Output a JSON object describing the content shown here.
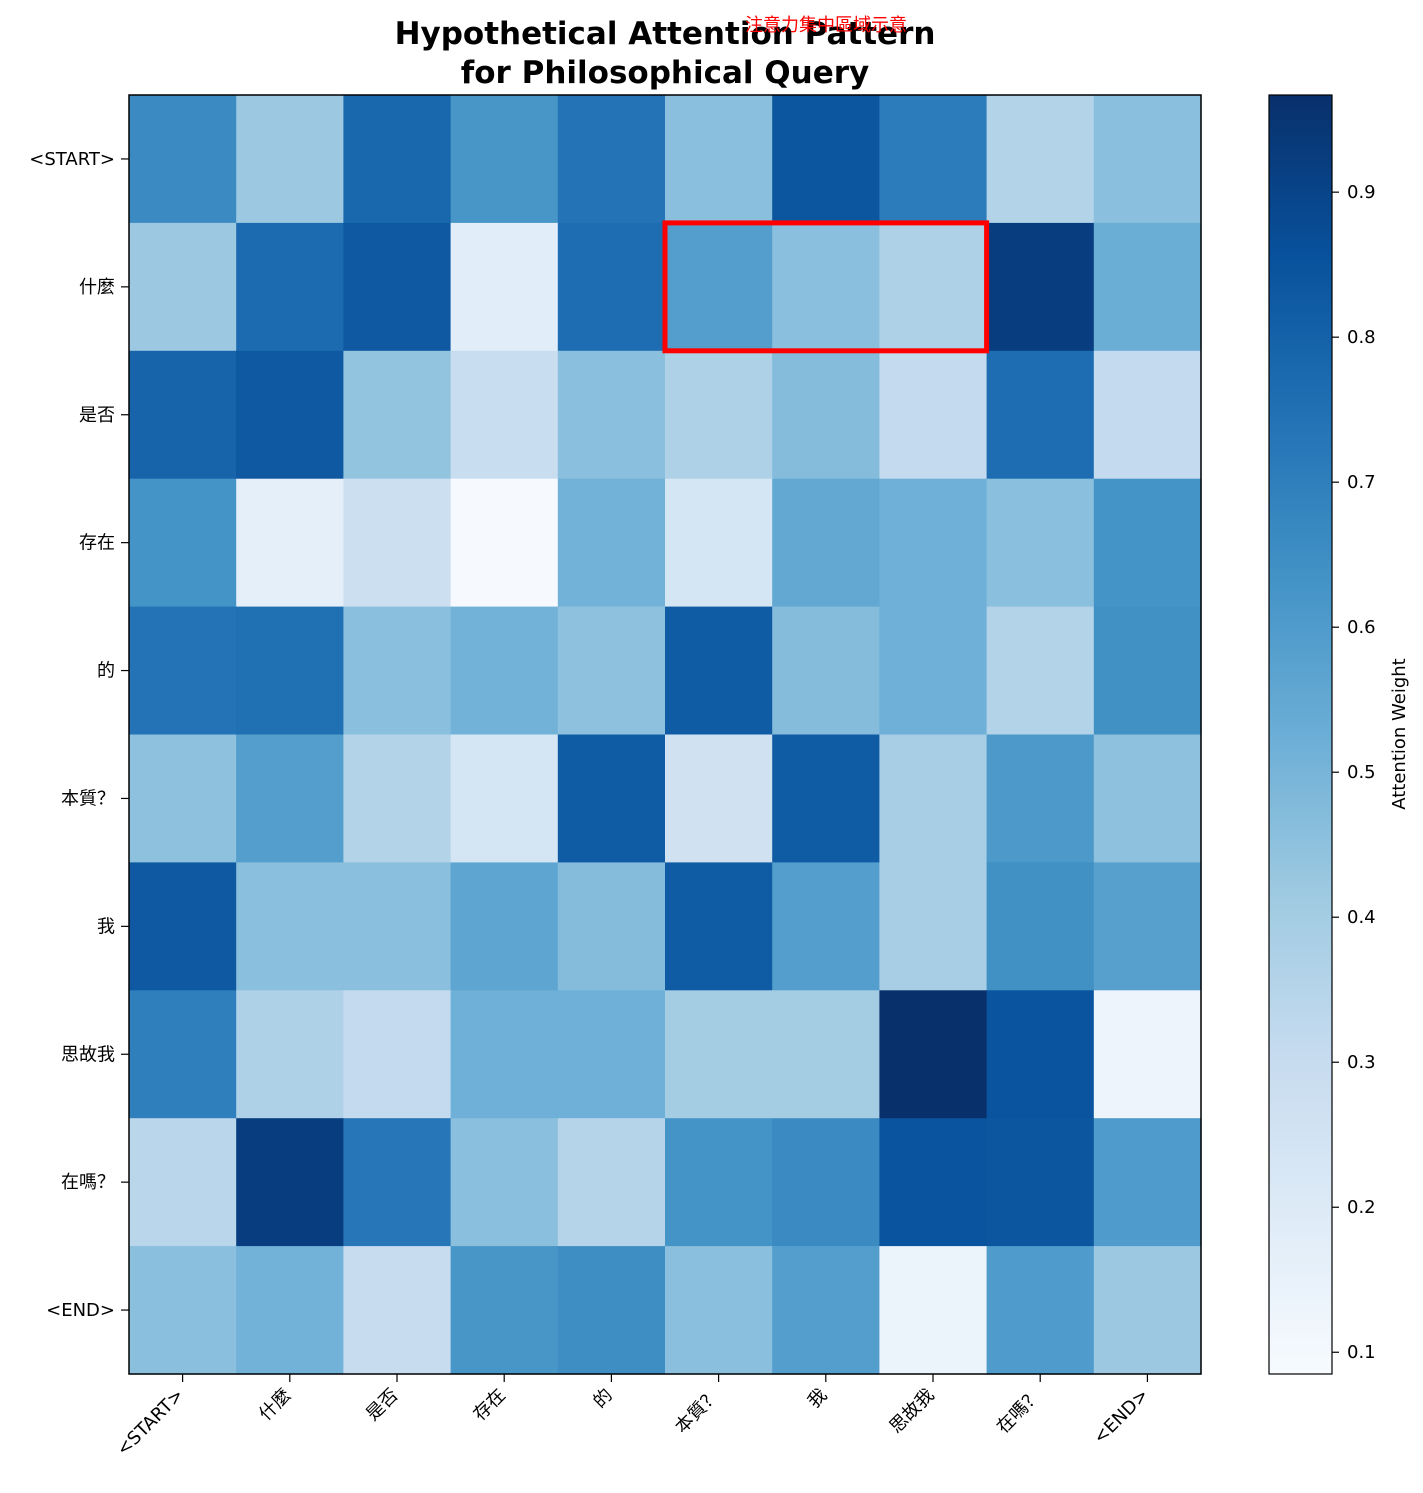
{
  "chart_data": {
    "type": "heatmap",
    "title_lines": [
      "Hypothetical Attention Pattern",
      "for Philosophical Query"
    ],
    "annotation": "注意力集中區域示意",
    "x_labels": [
      "<START>",
      "什麼",
      "是否",
      "存在",
      "的",
      "本質？",
      "我",
      "思故我",
      "在嗎？",
      "<END>"
    ],
    "y_labels": [
      "<START>",
      "什麼",
      "是否",
      "存在",
      "的",
      "本質？",
      "我",
      "思故我",
      "在嗎？",
      "<END>"
    ],
    "values": [
      [
        0.66,
        0.42,
        0.78,
        0.62,
        0.74,
        0.46,
        0.84,
        0.71,
        0.36,
        0.46
      ],
      [
        0.42,
        0.77,
        0.83,
        0.18,
        0.76,
        0.59,
        0.46,
        0.37,
        0.92,
        0.53
      ],
      [
        0.79,
        0.83,
        0.44,
        0.29,
        0.46,
        0.37,
        0.47,
        0.31,
        0.76,
        0.31
      ],
      [
        0.63,
        0.17,
        0.28,
        0.09,
        0.51,
        0.24,
        0.55,
        0.52,
        0.46,
        0.63
      ],
      [
        0.74,
        0.75,
        0.46,
        0.51,
        0.45,
        0.82,
        0.47,
        0.52,
        0.36,
        0.64
      ],
      [
        0.45,
        0.59,
        0.36,
        0.24,
        0.82,
        0.26,
        0.82,
        0.39,
        0.61,
        0.45
      ],
      [
        0.83,
        0.46,
        0.46,
        0.56,
        0.47,
        0.82,
        0.59,
        0.39,
        0.64,
        0.58
      ],
      [
        0.7,
        0.37,
        0.31,
        0.52,
        0.52,
        0.4,
        0.4,
        0.97,
        0.85,
        0.13
      ],
      [
        0.34,
        0.92,
        0.73,
        0.46,
        0.35,
        0.63,
        0.66,
        0.85,
        0.84,
        0.6
      ],
      [
        0.46,
        0.51,
        0.3,
        0.62,
        0.65,
        0.46,
        0.59,
        0.14,
        0.6,
        0.42
      ]
    ],
    "highlight_region": {
      "row": 1,
      "col_start": 5,
      "col_end": 7,
      "color": "#ff0000"
    },
    "colormap": "Blues",
    "colorbar": {
      "label": "Attention Weight",
      "range": [
        0.085,
        0.967
      ],
      "ticks": [
        "0.1",
        "0.2",
        "0.3",
        "0.4",
        "0.5",
        "0.6",
        "0.7",
        "0.8",
        "0.9"
      ]
    }
  }
}
